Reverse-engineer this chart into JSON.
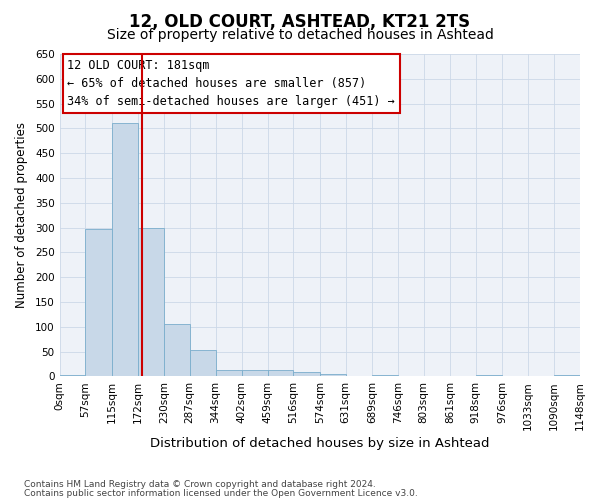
{
  "title": "12, OLD COURT, ASHTEAD, KT21 2TS",
  "subtitle": "Size of property relative to detached houses in Ashtead",
  "xlabel": "Distribution of detached houses by size in Ashtead",
  "ylabel": "Number of detached properties",
  "footer_line1": "Contains HM Land Registry data © Crown copyright and database right 2024.",
  "footer_line2": "Contains public sector information licensed under the Open Government Licence v3.0.",
  "bin_edges": [
    0,
    57,
    115,
    172,
    230,
    287,
    344,
    402,
    459,
    516,
    574,
    631,
    689,
    746,
    803,
    861,
    918,
    976,
    1033,
    1090,
    1148
  ],
  "bin_tick_labels": [
    "0sqm",
    "57sqm",
    "115sqm",
    "172sqm",
    "230sqm",
    "287sqm",
    "344sqm",
    "402sqm",
    "459sqm",
    "516sqm",
    "574sqm",
    "631sqm",
    "689sqm",
    "746sqm",
    "803sqm",
    "861sqm",
    "918sqm",
    "976sqm",
    "1033sqm",
    "1090sqm",
    "1148sqm"
  ],
  "bar_values": [
    3,
    298,
    510,
    300,
    106,
    53,
    12,
    13,
    12,
    8,
    5,
    0,
    3,
    0,
    0,
    0,
    2,
    0,
    0,
    2
  ],
  "bar_color": "#c8d8e8",
  "bar_edgecolor": "#7aadcc",
  "bar_linewidth": 0.6,
  "vline_value": 181,
  "vline_color": "#cc0000",
  "vline_linewidth": 1.5,
  "ylim": [
    0,
    650
  ],
  "yticks": [
    0,
    50,
    100,
    150,
    200,
    250,
    300,
    350,
    400,
    450,
    500,
    550,
    600,
    650
  ],
  "annotation_text": "12 OLD COURT: 181sqm\n← 65% of detached houses are smaller (857)\n34% of semi-detached houses are larger (451) →",
  "grid_color": "#ccd8e8",
  "background_color": "#eef2f8",
  "title_fontsize": 12,
  "subtitle_fontsize": 10,
  "xlabel_fontsize": 9.5,
  "ylabel_fontsize": 8.5,
  "tick_fontsize": 7.5,
  "annotation_fontsize": 8.5
}
